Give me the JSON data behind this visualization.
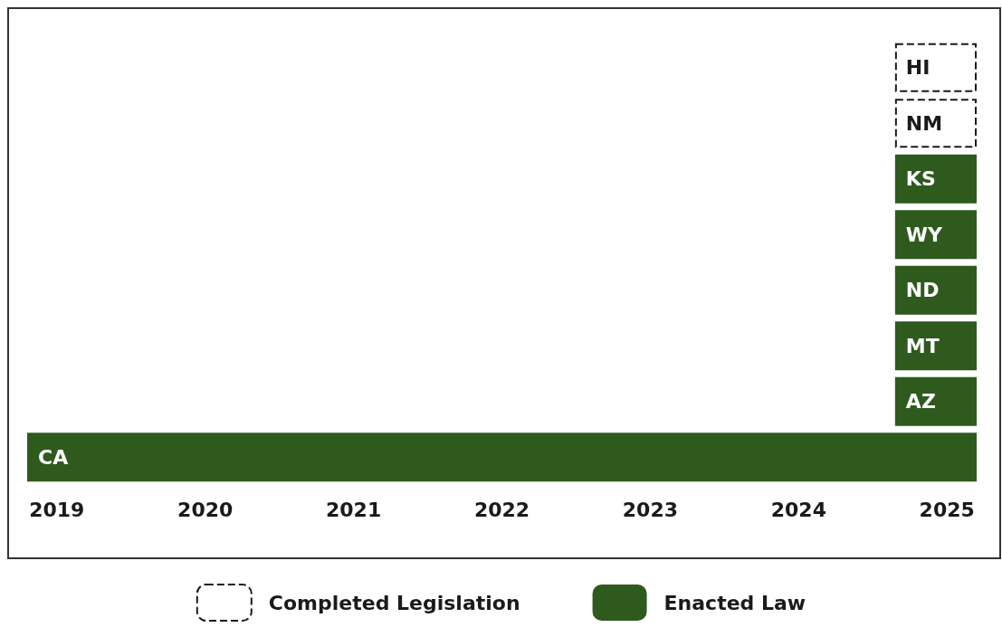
{
  "chart_data": {
    "type": "bar",
    "orientation": "horizontal",
    "categories": [
      "HI",
      "NM",
      "KS",
      "WY",
      "ND",
      "MT",
      "AZ",
      "CA"
    ],
    "series": [
      {
        "name": "Completed Legislation",
        "color": "#1a1a1a",
        "line_style": "dashed",
        "values": [
          0.55,
          0.55,
          null,
          null,
          null,
          null,
          null,
          null
        ],
        "base": [
          2024.65,
          2024.65,
          null,
          null,
          null,
          null,
          null,
          null
        ]
      },
      {
        "name": "Enacted Law",
        "color": "#2f5a1e",
        "values": [
          null,
          null,
          0.55,
          0.55,
          0.55,
          0.55,
          0.55,
          6.4
        ],
        "base": [
          null,
          null,
          2024.65,
          2024.65,
          2024.65,
          2024.65,
          2024.65,
          2018.8
        ]
      }
    ],
    "xlim": [
      2018.8,
      2025.2
    ],
    "xticks": [
      2019,
      2020,
      2021,
      2022,
      2023,
      2024,
      2025
    ],
    "grid": false,
    "legend": "bottom"
  }
}
